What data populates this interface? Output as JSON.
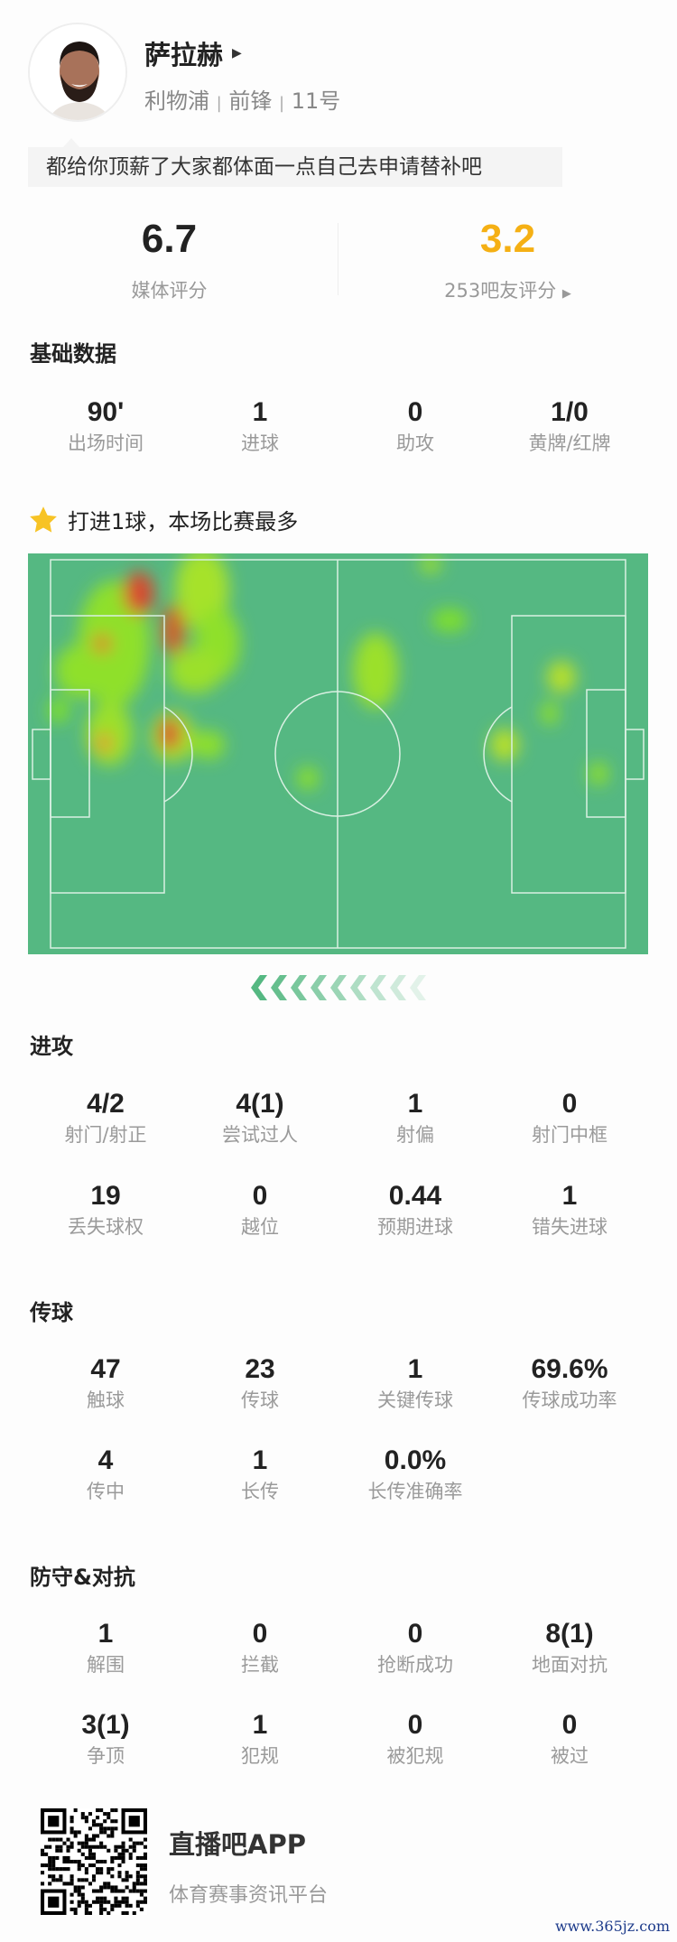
{
  "player": {
    "name": "萨拉赫",
    "team": "利物浦",
    "position": "前锋",
    "number": "11号",
    "separator": "|",
    "comment": "都给你顶薪了大家都体面一点自己去申请替补吧"
  },
  "ratings": {
    "media": {
      "value": "6.7",
      "label": "媒体评分"
    },
    "fans": {
      "value": "3.2",
      "label": "253吧友评分",
      "color": "#f5b014"
    }
  },
  "basic": {
    "title": "基础数据",
    "stats": [
      {
        "value": "90'",
        "label": "出场时间"
      },
      {
        "value": "1",
        "label": "进球"
      },
      {
        "value": "0",
        "label": "助攻"
      },
      {
        "value": "1/0",
        "label": "黄牌/红牌"
      }
    ]
  },
  "highlight": {
    "icon": "star-icon",
    "text": "打进1球，本场比赛最多",
    "color": "#f7c325"
  },
  "heatmap": {
    "pitch_color": "#55b882",
    "line_color": "#d9f0e2",
    "direction_icon": "chevron-left-icon"
  },
  "attack": {
    "title": "进攻",
    "stats": [
      {
        "value": "4/2",
        "label": "射门/射正"
      },
      {
        "value": "4(1)",
        "label": "尝试过人"
      },
      {
        "value": "1",
        "label": "射偏"
      },
      {
        "value": "0",
        "label": "射门中框"
      },
      {
        "value": "19",
        "label": "丢失球权"
      },
      {
        "value": "0",
        "label": "越位"
      },
      {
        "value": "0.44",
        "label": "预期进球"
      },
      {
        "value": "1",
        "label": "错失进球"
      }
    ]
  },
  "passing": {
    "title": "传球",
    "stats": [
      {
        "value": "47",
        "label": "触球"
      },
      {
        "value": "23",
        "label": "传球"
      },
      {
        "value": "1",
        "label": "关键传球"
      },
      {
        "value": "69.6%",
        "label": "传球成功率"
      },
      {
        "value": "4",
        "label": "传中"
      },
      {
        "value": "1",
        "label": "长传"
      },
      {
        "value": "0.0%",
        "label": "长传准确率"
      }
    ]
  },
  "defense": {
    "title": "防守&对抗",
    "stats": [
      {
        "value": "1",
        "label": "解围"
      },
      {
        "value": "0",
        "label": "拦截"
      },
      {
        "value": "0",
        "label": "抢断成功"
      },
      {
        "value": "8(1)",
        "label": "地面对抗"
      },
      {
        "value": "3(1)",
        "label": "争顶"
      },
      {
        "value": "1",
        "label": "犯规"
      },
      {
        "value": "0",
        "label": "被犯规"
      },
      {
        "value": "0",
        "label": "被过"
      }
    ]
  },
  "footer": {
    "app_name": "直播吧APP",
    "tagline": "体育赛事资讯平台",
    "watermark": "www.365jz.com"
  }
}
